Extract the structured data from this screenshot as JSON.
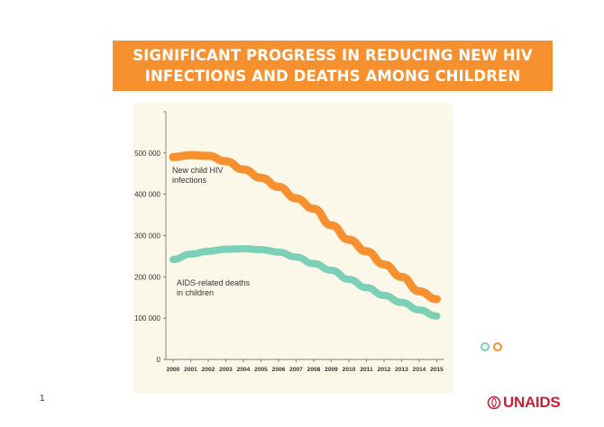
{
  "page": {
    "title_lines": [
      "SIGNIFICANT PROGRESS IN REDUCING NEW HIV",
      "INFECTIONS AND DEATHS AMONG CHILDREN"
    ],
    "page_number": "1",
    "logo_text": "UNAIDS"
  },
  "colors": {
    "banner": "#f7902f",
    "new_infections": "#f7902f",
    "aids_deaths": "#7cd0b8",
    "chart_background": "#fbf8ea",
    "logo": "#cc1f36"
  },
  "chart_data": {
    "type": "line",
    "title": "",
    "xlabel": "",
    "ylabel": "",
    "categories": [
      "2000",
      "2001",
      "2002",
      "2003",
      "2004",
      "2005",
      "2006",
      "2007",
      "2008",
      "2009",
      "2010",
      "2011",
      "2012",
      "2013",
      "2014",
      "2015"
    ],
    "ylim": [
      0,
      600000
    ],
    "y_ticks": [
      0,
      100000,
      200000,
      300000,
      400000,
      500000
    ],
    "y_tick_labels": [
      "0",
      "100 000",
      "200 000",
      "300 000",
      "400 000",
      "500 000"
    ],
    "grid": false,
    "series": [
      {
        "name": "New child HIV infections",
        "label_lines": [
          "New child HIV",
          "infections"
        ],
        "color": "#f7902f",
        "values": [
          490000,
          495000,
          493000,
          480000,
          460000,
          440000,
          418000,
          390000,
          365000,
          325000,
          290000,
          262000,
          230000,
          200000,
          165000,
          146000
        ]
      },
      {
        "name": "AIDS-related deaths in children",
        "label_lines": [
          "AIDS-related deaths",
          "in children"
        ],
        "color": "#7cd0b8",
        "values": [
          242000,
          255000,
          262000,
          267000,
          268000,
          266000,
          260000,
          248000,
          232000,
          216000,
          194000,
          174000,
          155000,
          138000,
          120000,
          105000
        ]
      }
    ]
  }
}
